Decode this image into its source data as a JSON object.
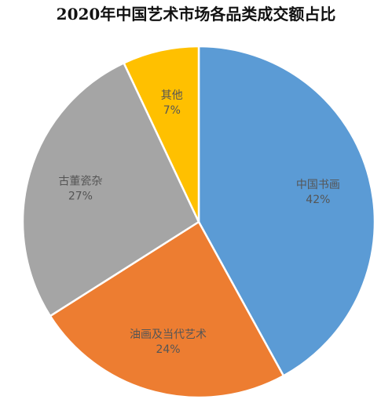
{
  "chart_data": {
    "type": "pie",
    "title": "2020年中国艺术市场各品类成交额占比",
    "start_angle_deg": 0,
    "direction": "clockwise",
    "categories": [
      "中国书画",
      "油画及当代艺术",
      "古董瓷杂",
      "其他"
    ],
    "values": [
      42,
      24,
      27,
      7
    ],
    "value_labels": [
      "42%",
      "24%",
      "27%",
      "7%"
    ],
    "colors": [
      "#5b9bd5",
      "#ed7d31",
      "#a5a5a5",
      "#ffc000"
    ],
    "legend": "none"
  }
}
